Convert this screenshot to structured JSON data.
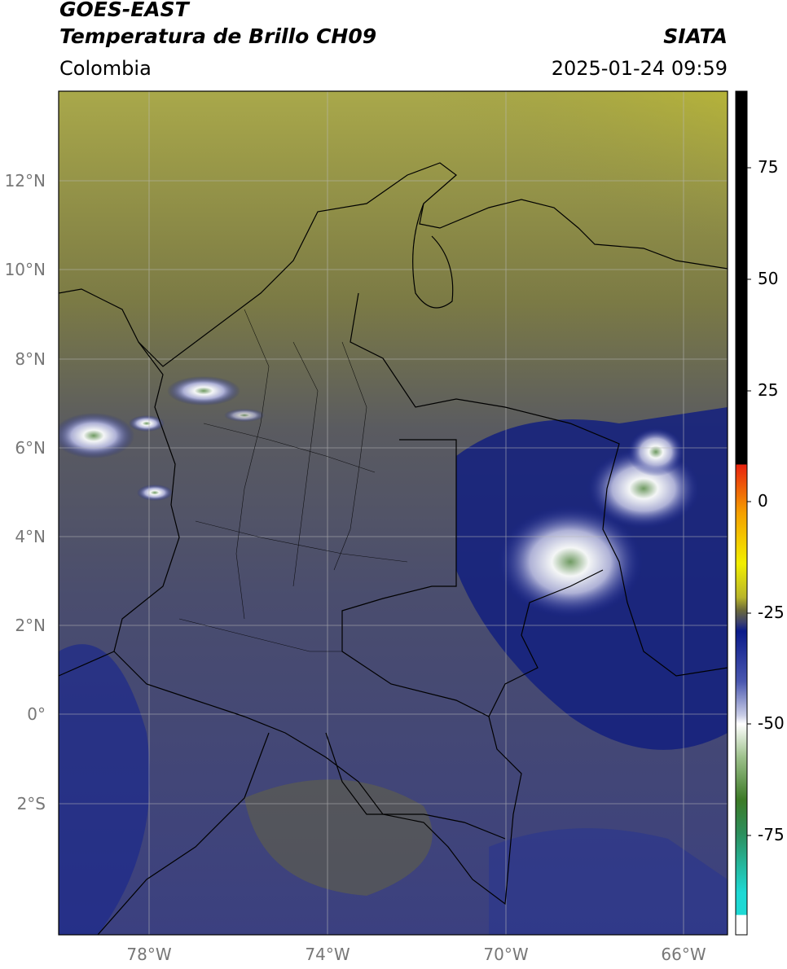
{
  "header": {
    "satellite": "GOES-EAST",
    "product": "Temperatura de Brillo CH09",
    "agency": "SIATA",
    "region": "Colombia",
    "datetime": "2025-01-24 09:59"
  },
  "map": {
    "lat_ticks": [
      "12°N",
      "10°N",
      "8°N",
      "6°N",
      "4°N",
      "2°N",
      "0°",
      "2°S"
    ],
    "lon_ticks": [
      "78°W",
      "74°W",
      "70°W",
      "66°W"
    ]
  },
  "colorbar": {
    "ticks": [
      "75",
      "50",
      "25",
      "0",
      "-25",
      "-50",
      "-75"
    ],
    "colors": {
      "black": "#000000",
      "red": "#e8230f",
      "orange": "#f5a000",
      "yellow": "#f2ef00",
      "olive": "#6c6a3a",
      "navy": "#0a1a8a",
      "white": "#ffffff",
      "green": "#3c7a26",
      "cyan": "#1ed9d4"
    }
  }
}
